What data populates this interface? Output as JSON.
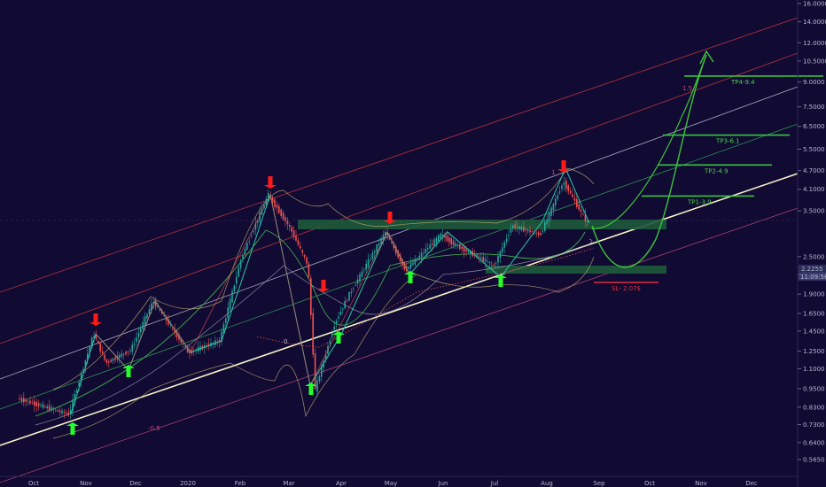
{
  "chart_data": {
    "type": "candlestick",
    "scale": "log",
    "grid": false,
    "y_ticks": [
      "16.0000",
      "14.0000",
      "12.0000",
      "10.5000",
      "9.0000",
      "7.5000",
      "6.5000",
      "5.5000",
      "4.7000",
      "4.1000",
      "3.5000",
      "2.5000",
      "2.2000",
      "1.9000",
      "1.6500",
      "1.4500",
      "1.2500",
      "1.1000",
      "0.9500",
      "0.8300",
      "0.7300",
      "0.6400",
      "0.5650"
    ],
    "x_ticks": [
      "Oct",
      "Nov",
      "Dec",
      "2020",
      "Feb",
      "Mar",
      "Apr",
      "May",
      "Jun",
      "Jul",
      "Aug",
      "Sep",
      "Oct",
      "Nov",
      "Dec"
    ],
    "last_price": "2.2255",
    "countdown": "11:09:56",
    "tp_levels": [
      {
        "label": "TP1-3.9",
        "value": 3.9
      },
      {
        "label": "TP2-4.9",
        "value": 4.9
      },
      {
        "label": "TP3-6.1",
        "value": 6.1
      },
      {
        "label": "TP4-9.4",
        "value": 9.4
      }
    ],
    "stop_loss": {
      "label": "SL- 2.07$",
      "value": 2.07
    },
    "fib_labels": [
      "1.5",
      "0",
      "-0.5",
      "1"
    ],
    "colors": {
      "background": "#110a33",
      "up": "#26a69a",
      "down": "#ef5350",
      "support_zone": "#1e5a3a",
      "target": "#39c43f",
      "stop": "#e0303a",
      "trendline": "#f5f3c8"
    }
  }
}
